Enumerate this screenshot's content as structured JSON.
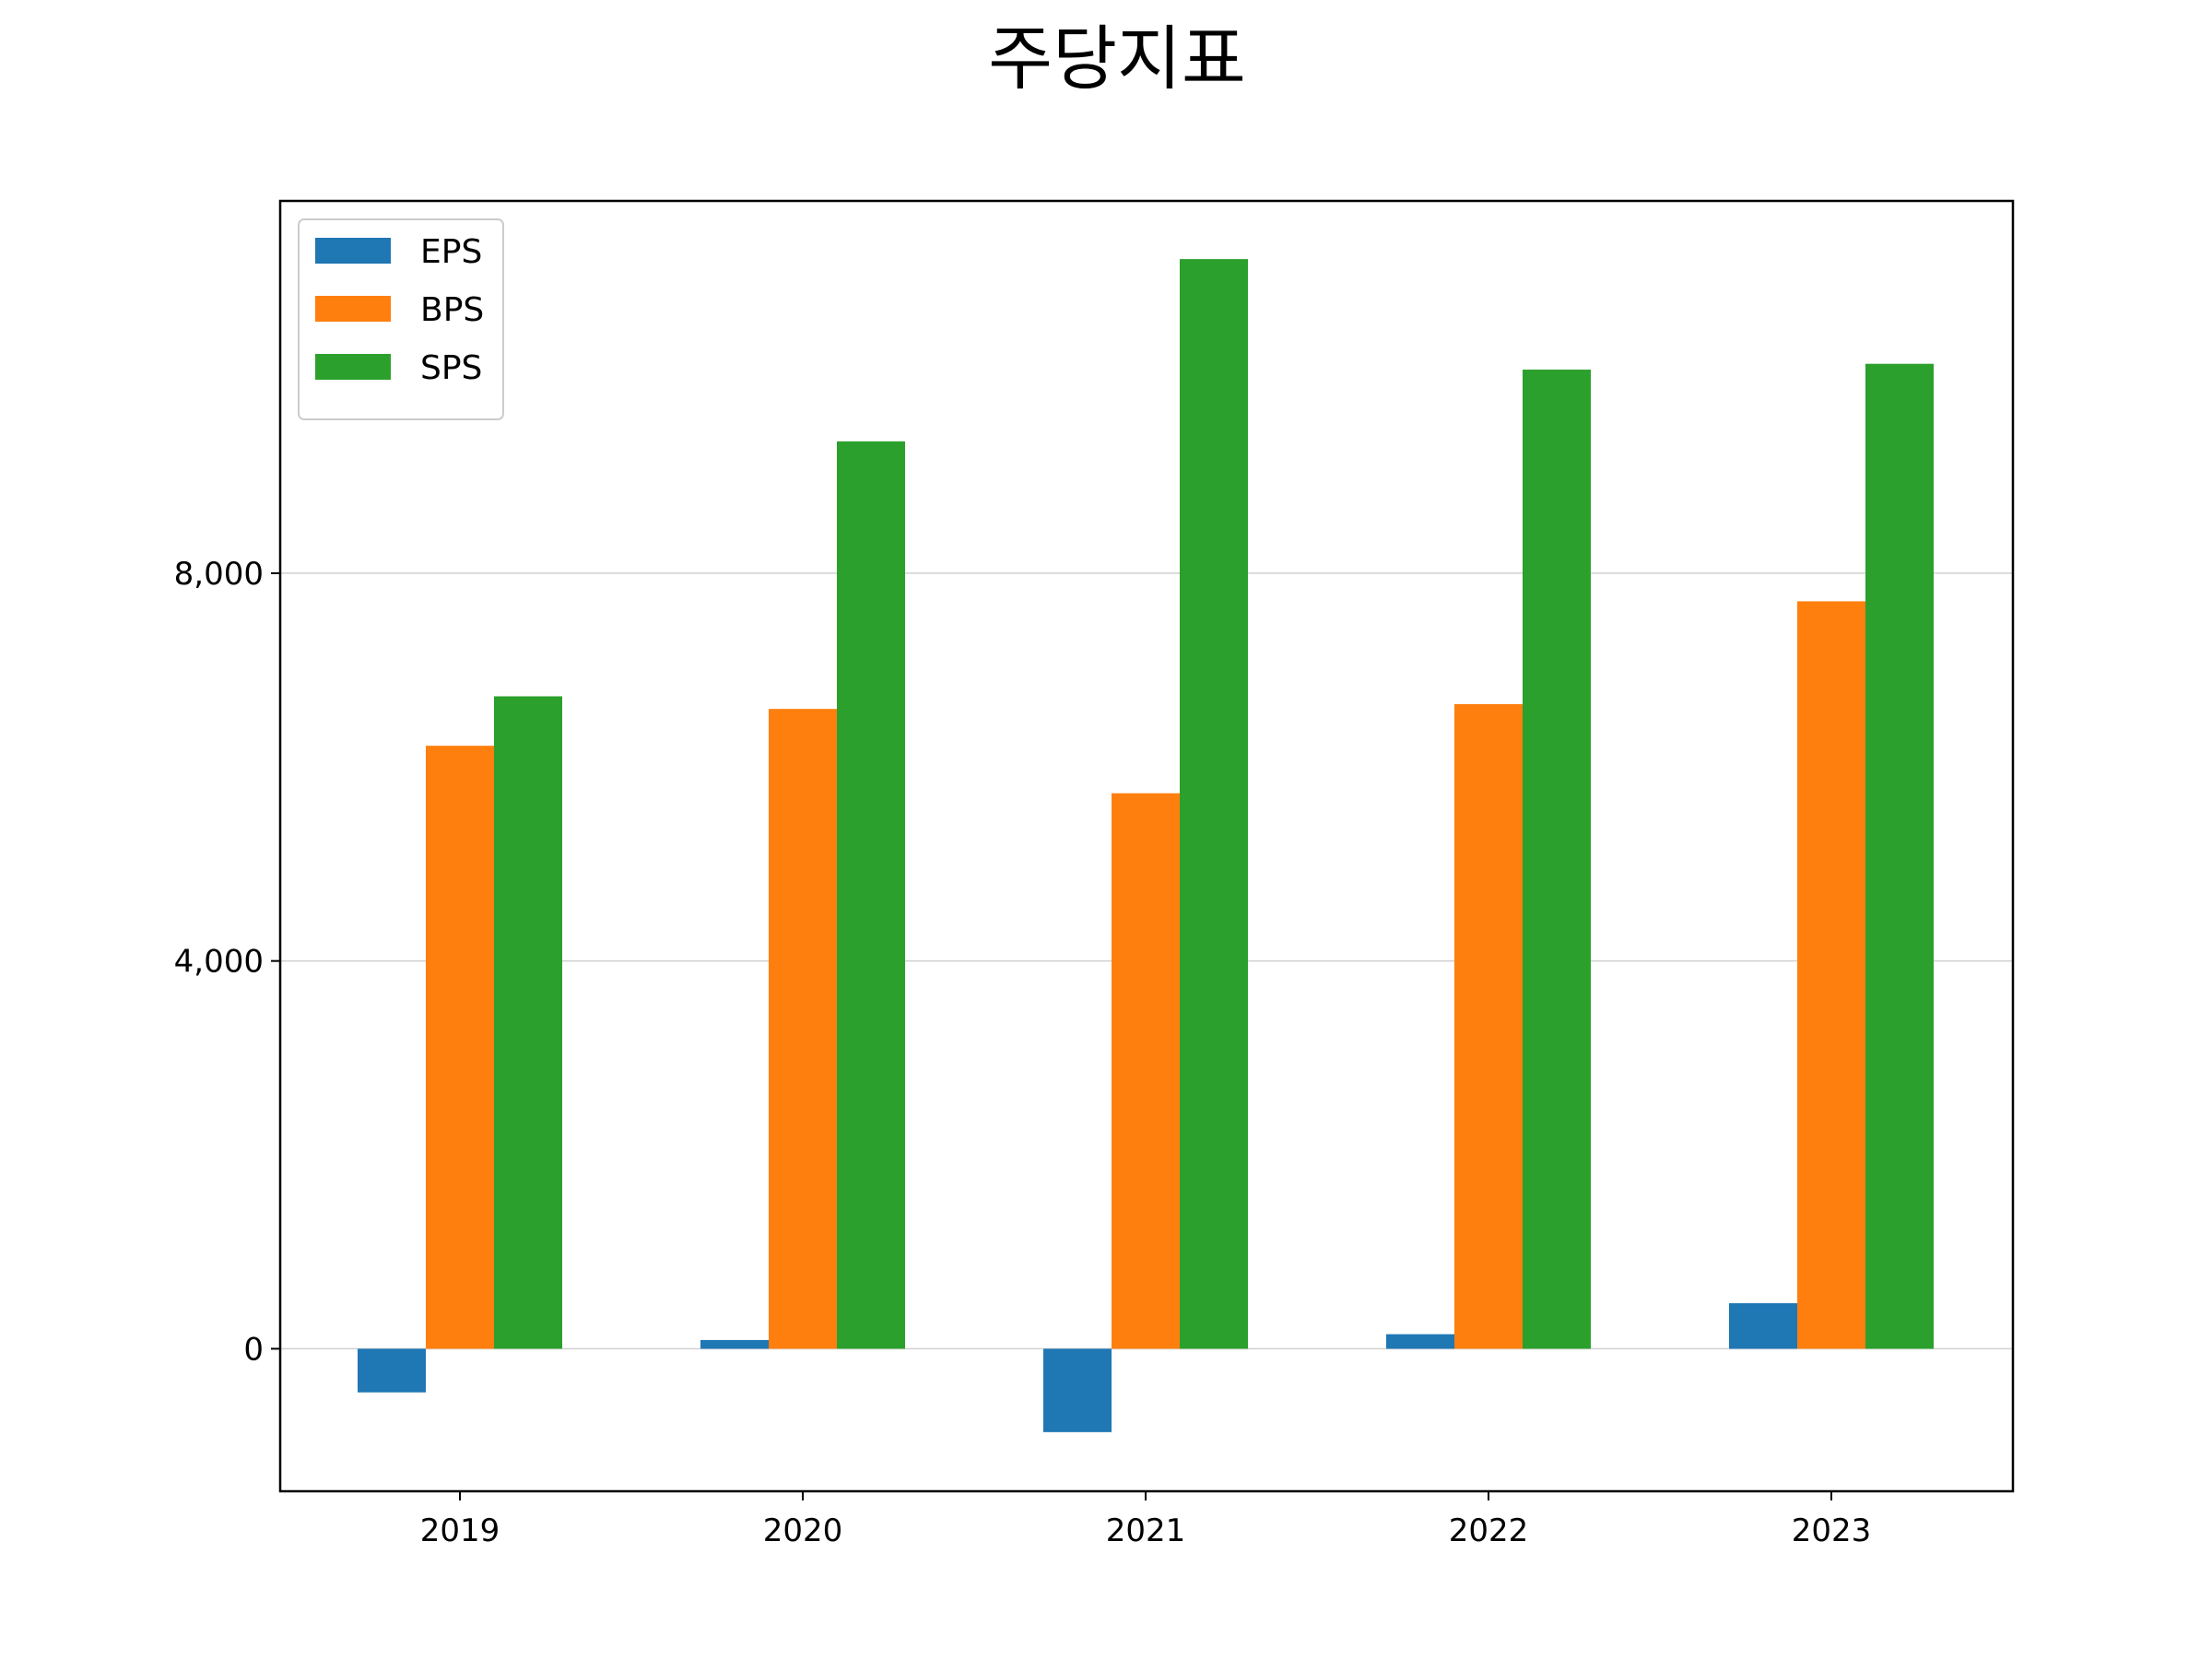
{
  "chart_data": {
    "type": "bar",
    "title": "주당지표",
    "categories": [
      "2019",
      "2020",
      "2021",
      "2022",
      "2023"
    ],
    "series": [
      {
        "name": "EPS",
        "color": "#1f77b4",
        "values": [
          -450,
          90,
          -860,
          150,
          470
        ]
      },
      {
        "name": "BPS",
        "color": "#ff7f0e",
        "values": [
          6220,
          6600,
          5730,
          6650,
          7710
        ]
      },
      {
        "name": "SPS",
        "color": "#2ca02c",
        "values": [
          6730,
          9360,
          11240,
          10100,
          10160
        ]
      }
    ],
    "y_ticks": [
      0,
      4000,
      8000
    ],
    "y_tick_labels": [
      "0",
      "4,000",
      "8,000"
    ],
    "ylim": [
      -1470,
      11840
    ],
    "xlabel": "",
    "ylabel": "",
    "grid": "horizontal",
    "legend_position": "top-left"
  }
}
